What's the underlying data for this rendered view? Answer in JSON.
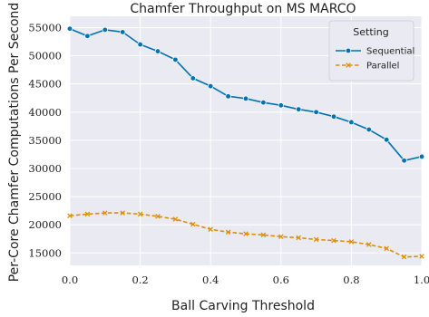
{
  "chart_data": {
    "type": "line",
    "title": "Chamfer Throughput on MS MARCO",
    "xlabel": "Ball Carving Threshold",
    "ylabel": "Per-Core Chamfer Computations Per Second",
    "xlim": [
      0.0,
      1.0
    ],
    "ylim": [
      12800,
      57000
    ],
    "xticks": [
      0.0,
      0.2,
      0.4,
      0.6,
      0.8,
      1.0
    ],
    "xtick_labels": [
      "0.0",
      "0.2",
      "0.4",
      "0.6",
      "0.8",
      "1.0"
    ],
    "yticks": [
      15000,
      20000,
      25000,
      30000,
      35000,
      40000,
      45000,
      50000,
      55000
    ],
    "ytick_labels": [
      "15000",
      "20000",
      "25000",
      "30000",
      "35000",
      "40000",
      "45000",
      "50000",
      "55000"
    ],
    "grid": true,
    "legend": {
      "title": "Setting",
      "position": "top-right"
    },
    "x": [
      0.0,
      0.05,
      0.1,
      0.15,
      0.2,
      0.25,
      0.3,
      0.35,
      0.4,
      0.45,
      0.5,
      0.55,
      0.6,
      0.65,
      0.7,
      0.75,
      0.8,
      0.85,
      0.9,
      0.95,
      1.0
    ],
    "series": [
      {
        "name": "Sequential",
        "color": "#0173b2",
        "marker": "circle",
        "line": "solid",
        "values": [
          54800,
          53500,
          54600,
          54200,
          52000,
          50800,
          49300,
          46000,
          44600,
          42800,
          42400,
          41700,
          41200,
          40500,
          40000,
          39200,
          38200,
          36900,
          35100,
          31400,
          32100
        ]
      },
      {
        "name": "Parallel",
        "color": "#de8f05",
        "marker": "x",
        "line": "dashed",
        "values": [
          21600,
          21900,
          22100,
          22100,
          21900,
          21500,
          21000,
          20100,
          19200,
          18700,
          18400,
          18200,
          17900,
          17700,
          17400,
          17200,
          17000,
          16500,
          15800,
          14300,
          14400
        ]
      }
    ]
  }
}
